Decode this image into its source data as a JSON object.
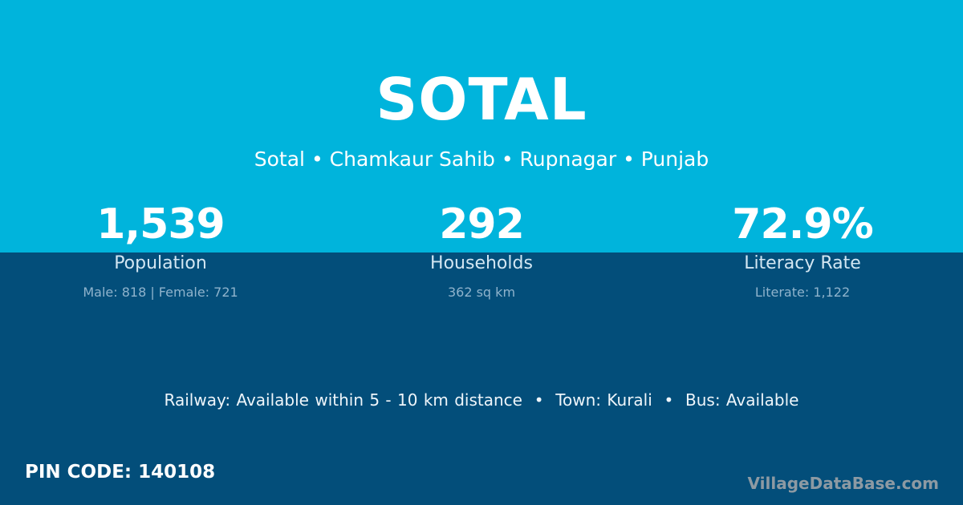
{
  "title": "SOTAL",
  "breadcrumb": "Sotal • Chamkaur Sahib • Rupnagar • Punjab",
  "stats": [
    {
      "value": "1,539",
      "label": "Population",
      "sub": "Male: 818 | Female: 721"
    },
    {
      "value": "292",
      "label": "Households",
      "sub": "362 sq km"
    },
    {
      "value": "72.9%",
      "label": "Literacy Rate",
      "sub": "Literate: 1,122"
    }
  ],
  "facts": "Railway: Available within 5 - 10 km distance  •  Town: Kurali  •  Bus: Available",
  "pin_code": "PIN CODE: 140108",
  "brand": "VillageDataBase.com",
  "colors": {
    "top": "#00b4dc",
    "bottom": "#034e7a"
  }
}
